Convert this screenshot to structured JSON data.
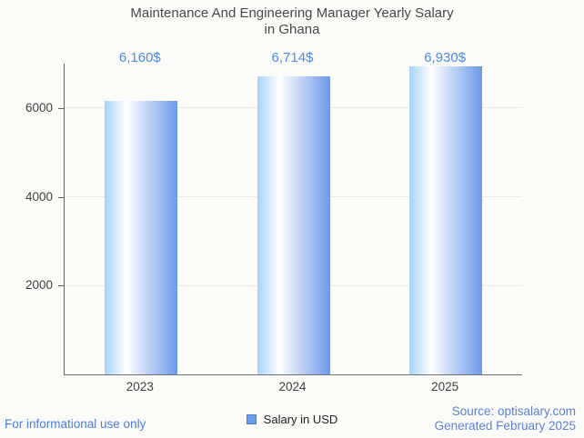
{
  "title": {
    "line1": "Maintenance And Engineering Manager Yearly Salary",
    "line2": "in Ghana"
  },
  "chart_data": {
    "type": "bar",
    "title": "Maintenance And Engineering Manager Yearly Salary in Ghana",
    "categories": [
      "2023",
      "2024",
      "2025"
    ],
    "values": [
      6160,
      6714,
      6930
    ],
    "value_labels": [
      "6,160$",
      "6,714$",
      "6,930$"
    ],
    "xlabel": "",
    "ylabel": "",
    "ylim": [
      0,
      7000
    ],
    "yticks": [
      2000,
      4000,
      6000
    ],
    "grid": true,
    "legend": {
      "label": "Salary in USD",
      "position": "bottom"
    },
    "bar_gradient": [
      "#a6d3fb",
      "#ffffff",
      "#6c99e9"
    ]
  },
  "footer": {
    "left": "For informational use only",
    "source_line1": "Source: optisalary.com",
    "source_line2": "Generated February 2025"
  },
  "colors": {
    "background": "#fbfbf8",
    "title_text": "#47484c",
    "axis_text": "#3e3f42",
    "y_axis_line": "#5f6163",
    "x_axis_line": "#6f7072",
    "gridline": "#e9e9e6",
    "value_label": "#4e89e5",
    "bar_gradient_left": "#a6d3fb",
    "bar_gradient_mid": "#ffffff",
    "bar_gradient_right": "#6c99e9",
    "legend_swatch_fill": "#6d9eeb",
    "legend_swatch_border": "#4a7dd0",
    "legend_text": "#202124",
    "disclaimer_text": "#4a7ce2",
    "source_text": "#5d80d8"
  }
}
